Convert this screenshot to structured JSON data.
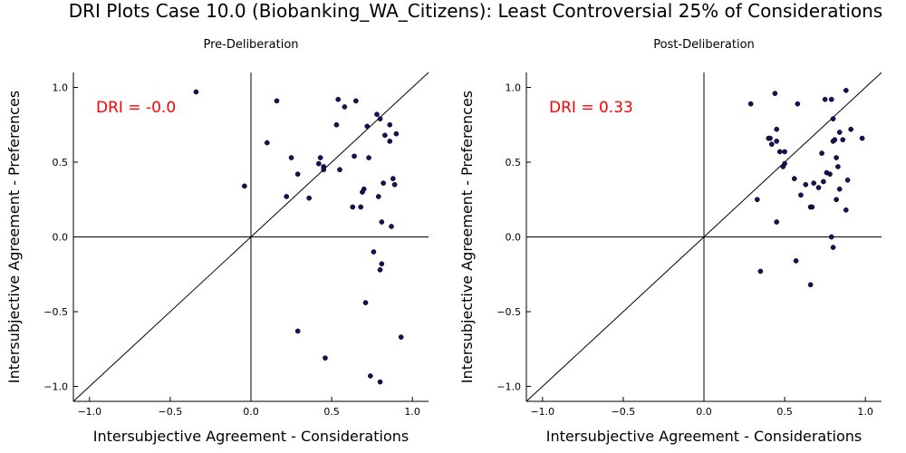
{
  "title": "DRI Plots Case 10.0 (Biobanking_WA_Citizens): Least Controversial 25% of Considerations",
  "chart_data": [
    {
      "type": "scatter",
      "subtitle": "Pre-Deliberation",
      "xlabel": "Intersubjective Agreement - Considerations",
      "ylabel": "Intersubjective Agreement - Preferences",
      "xlim": [
        -1.1,
        1.1
      ],
      "ylim": [
        -1.1,
        1.1
      ],
      "xticks": [
        -1.0,
        -0.5,
        0.0,
        0.5,
        1.0
      ],
      "yticks": [
        -1.0,
        -0.5,
        0.0,
        0.5,
        1.0
      ],
      "xtick_labels": [
        "−1.0",
        "−0.5",
        "0.0",
        "0.5",
        "1.0"
      ],
      "ytick_labels": [
        "−1.0",
        "−0.5",
        "0.0",
        "0.5",
        "1.0"
      ],
      "annotation": "DRI = -0.0",
      "annotation_color": "#ff0000",
      "point_color": "#1a0f5c",
      "grid": false,
      "points": [
        [
          -0.34,
          0.97
        ],
        [
          -0.04,
          0.34
        ],
        [
          0.1,
          0.63
        ],
        [
          0.16,
          0.91
        ],
        [
          0.22,
          0.27
        ],
        [
          0.25,
          0.53
        ],
        [
          0.29,
          0.42
        ],
        [
          0.29,
          -0.63
        ],
        [
          0.36,
          0.26
        ],
        [
          0.42,
          0.49
        ],
        [
          0.43,
          0.53
        ],
        [
          0.45,
          0.47
        ],
        [
          0.45,
          0.45
        ],
        [
          0.46,
          -0.81
        ],
        [
          0.53,
          0.75
        ],
        [
          0.54,
          0.92
        ],
        [
          0.55,
          0.45
        ],
        [
          0.58,
          0.87
        ],
        [
          0.63,
          0.2
        ],
        [
          0.64,
          0.54
        ],
        [
          0.65,
          0.91
        ],
        [
          0.68,
          0.2
        ],
        [
          0.69,
          0.3
        ],
        [
          0.7,
          0.32
        ],
        [
          0.71,
          -0.44
        ],
        [
          0.72,
          0.74
        ],
        [
          0.73,
          0.53
        ],
        [
          0.74,
          -0.93
        ],
        [
          0.76,
          -0.1
        ],
        [
          0.78,
          0.82
        ],
        [
          0.79,
          0.27
        ],
        [
          0.8,
          -0.22
        ],
        [
          0.8,
          0.79
        ],
        [
          0.81,
          -0.18
        ],
        [
          0.81,
          0.1
        ],
        [
          0.82,
          0.36
        ],
        [
          0.83,
          0.68
        ],
        [
          0.8,
          -0.97
        ],
        [
          0.86,
          0.64
        ],
        [
          0.87,
          0.07
        ],
        [
          0.88,
          0.39
        ],
        [
          0.89,
          0.35
        ],
        [
          0.9,
          0.69
        ],
        [
          0.93,
          -0.67
        ],
        [
          0.86,
          0.75
        ]
      ]
    },
    {
      "type": "scatter",
      "subtitle": "Post-Deliberation",
      "xlabel": "Intersubjective Agreement - Considerations",
      "ylabel": "Intersubjective Agreement - Preferences",
      "xlim": [
        -1.1,
        1.1
      ],
      "ylim": [
        -1.1,
        1.1
      ],
      "xticks": [
        -1.0,
        -0.5,
        0.0,
        0.5,
        1.0
      ],
      "yticks": [
        -1.0,
        -0.5,
        0.0,
        0.5,
        1.0
      ],
      "xtick_labels": [
        "−1.0",
        "−0.5",
        "0.0",
        "0.5",
        "1.0"
      ],
      "ytick_labels": [
        "−1.0",
        "−0.5",
        "0.0",
        "0.5",
        "1.0"
      ],
      "annotation": "DRI = 0.33",
      "annotation_color": "#ff0000",
      "point_color": "#1a0f5c",
      "grid": false,
      "points": [
        [
          0.29,
          0.89
        ],
        [
          0.33,
          0.25
        ],
        [
          0.35,
          -0.23
        ],
        [
          0.4,
          0.66
        ],
        [
          0.41,
          0.66
        ],
        [
          0.42,
          0.62
        ],
        [
          0.44,
          0.96
        ],
        [
          0.45,
          0.64
        ],
        [
          0.45,
          0.72
        ],
        [
          0.45,
          0.1
        ],
        [
          0.47,
          0.57
        ],
        [
          0.49,
          0.47
        ],
        [
          0.5,
          0.49
        ],
        [
          0.5,
          0.57
        ],
        [
          0.56,
          0.39
        ],
        [
          0.57,
          -0.16
        ],
        [
          0.58,
          0.89
        ],
        [
          0.6,
          0.28
        ],
        [
          0.63,
          0.35
        ],
        [
          0.66,
          0.2
        ],
        [
          0.66,
          -0.32
        ],
        [
          0.67,
          0.2
        ],
        [
          0.68,
          0.36
        ],
        [
          0.71,
          0.33
        ],
        [
          0.73,
          0.56
        ],
        [
          0.74,
          0.37
        ],
        [
          0.75,
          0.92
        ],
        [
          0.76,
          0.43
        ],
        [
          0.78,
          0.42
        ],
        [
          0.79,
          0.92
        ],
        [
          0.79,
          0.0
        ],
        [
          0.8,
          0.79
        ],
        [
          0.8,
          0.64
        ],
        [
          0.8,
          -0.07
        ],
        [
          0.81,
          0.65
        ],
        [
          0.82,
          0.53
        ],
        [
          0.82,
          0.25
        ],
        [
          0.83,
          0.47
        ],
        [
          0.84,
          0.32
        ],
        [
          0.84,
          0.7
        ],
        [
          0.86,
          0.65
        ],
        [
          0.88,
          0.98
        ],
        [
          0.88,
          0.18
        ],
        [
          0.89,
          0.38
        ],
        [
          0.91,
          0.72
        ],
        [
          0.98,
          0.66
        ]
      ]
    }
  ]
}
